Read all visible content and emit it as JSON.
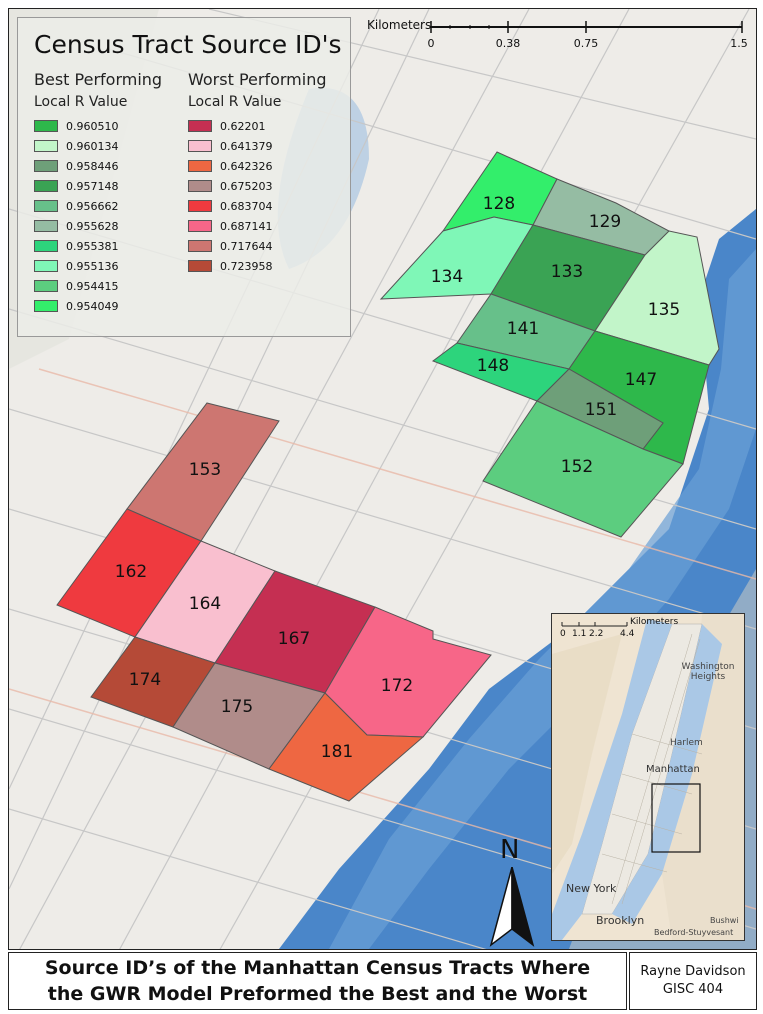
{
  "legend": {
    "title": "Census Tract Source ID's",
    "best": {
      "heading": "Best Performing",
      "subheading": "Local R Value",
      "items": [
        {
          "value": "0.960510",
          "color": "#2eb84b"
        },
        {
          "value": "0.960134",
          "color": "#c2f5c9"
        },
        {
          "value": "0.958446",
          "color": "#6e9f79"
        },
        {
          "value": "0.957148",
          "color": "#3aa354"
        },
        {
          "value": "0.956662",
          "color": "#67c08a"
        },
        {
          "value": "0.955628",
          "color": "#95bca3"
        },
        {
          "value": "0.955381",
          "color": "#2dd47c"
        },
        {
          "value": "0.955136",
          "color": "#7ff7b7"
        },
        {
          "value": "0.954415",
          "color": "#5ccd7f"
        },
        {
          "value": "0.954049",
          "color": "#33ee6b"
        }
      ]
    },
    "worst": {
      "heading": "Worst Performing",
      "subheading": "Local R Value",
      "items": [
        {
          "value": "0.62201",
          "color": "#c52f52"
        },
        {
          "value": "0.641379",
          "color": "#f9bfcf"
        },
        {
          "value": "0.642326",
          "color": "#ee6742"
        },
        {
          "value": "0.675203",
          "color": "#b08c8a"
        },
        {
          "value": "0.683704",
          "color": "#ef3a3f"
        },
        {
          "value": "0.687141",
          "color": "#f76688"
        },
        {
          "value": "0.717644",
          "color": "#cd7671"
        },
        {
          "value": "0.723958",
          "color": "#b54a37"
        }
      ]
    }
  },
  "tracts": [
    {
      "id": "128",
      "color": "#33ee6b"
    },
    {
      "id": "129",
      "color": "#95bca3"
    },
    {
      "id": "133",
      "color": "#3aa354"
    },
    {
      "id": "134",
      "color": "#7ff7b7"
    },
    {
      "id": "135",
      "color": "#c2f5c9"
    },
    {
      "id": "141",
      "color": "#67c08a"
    },
    {
      "id": "147",
      "color": "#2eb84b"
    },
    {
      "id": "148",
      "color": "#2dd47c"
    },
    {
      "id": "151",
      "color": "#6e9f79"
    },
    {
      "id": "152",
      "color": "#5ccd7f"
    },
    {
      "id": "153",
      "color": "#cd7671"
    },
    {
      "id": "162",
      "color": "#ef3a3f"
    },
    {
      "id": "164",
      "color": "#f9bfcf"
    },
    {
      "id": "167",
      "color": "#c52f52"
    },
    {
      "id": "172",
      "color": "#f76688"
    },
    {
      "id": "174",
      "color": "#b54a37"
    },
    {
      "id": "175",
      "color": "#b08c8a"
    },
    {
      "id": "181",
      "color": "#ee6742"
    }
  ],
  "scalebar": {
    "unit": "Kilometers",
    "ticks": [
      "0",
      "0.38",
      "0.75",
      "1.5"
    ]
  },
  "inset": {
    "scale_unit": "Kilometers",
    "scale_ticks": [
      "0",
      "1.1",
      "2.2",
      "4.4"
    ],
    "places": {
      "washington_heights": "Washington Heights",
      "harlem": "Harlem",
      "manhattan": "Manhattan",
      "new_york": "New York",
      "brooklyn": "Brooklyn",
      "bushwick": "Bushwi",
      "bedford": "Bedford-Stuyvesant"
    }
  },
  "north_arrow": "N",
  "title": {
    "line1": "Source ID’s of the Manhattan Census Tracts Where",
    "line2": "the GWR Model Preformed the Best and the Worst"
  },
  "author": {
    "name": "Rayne Davidson",
    "course": "GISC 404"
  },
  "colors": {
    "water": "#3f7ec8",
    "land": "#eeece8",
    "street": "#c9c9c9"
  }
}
